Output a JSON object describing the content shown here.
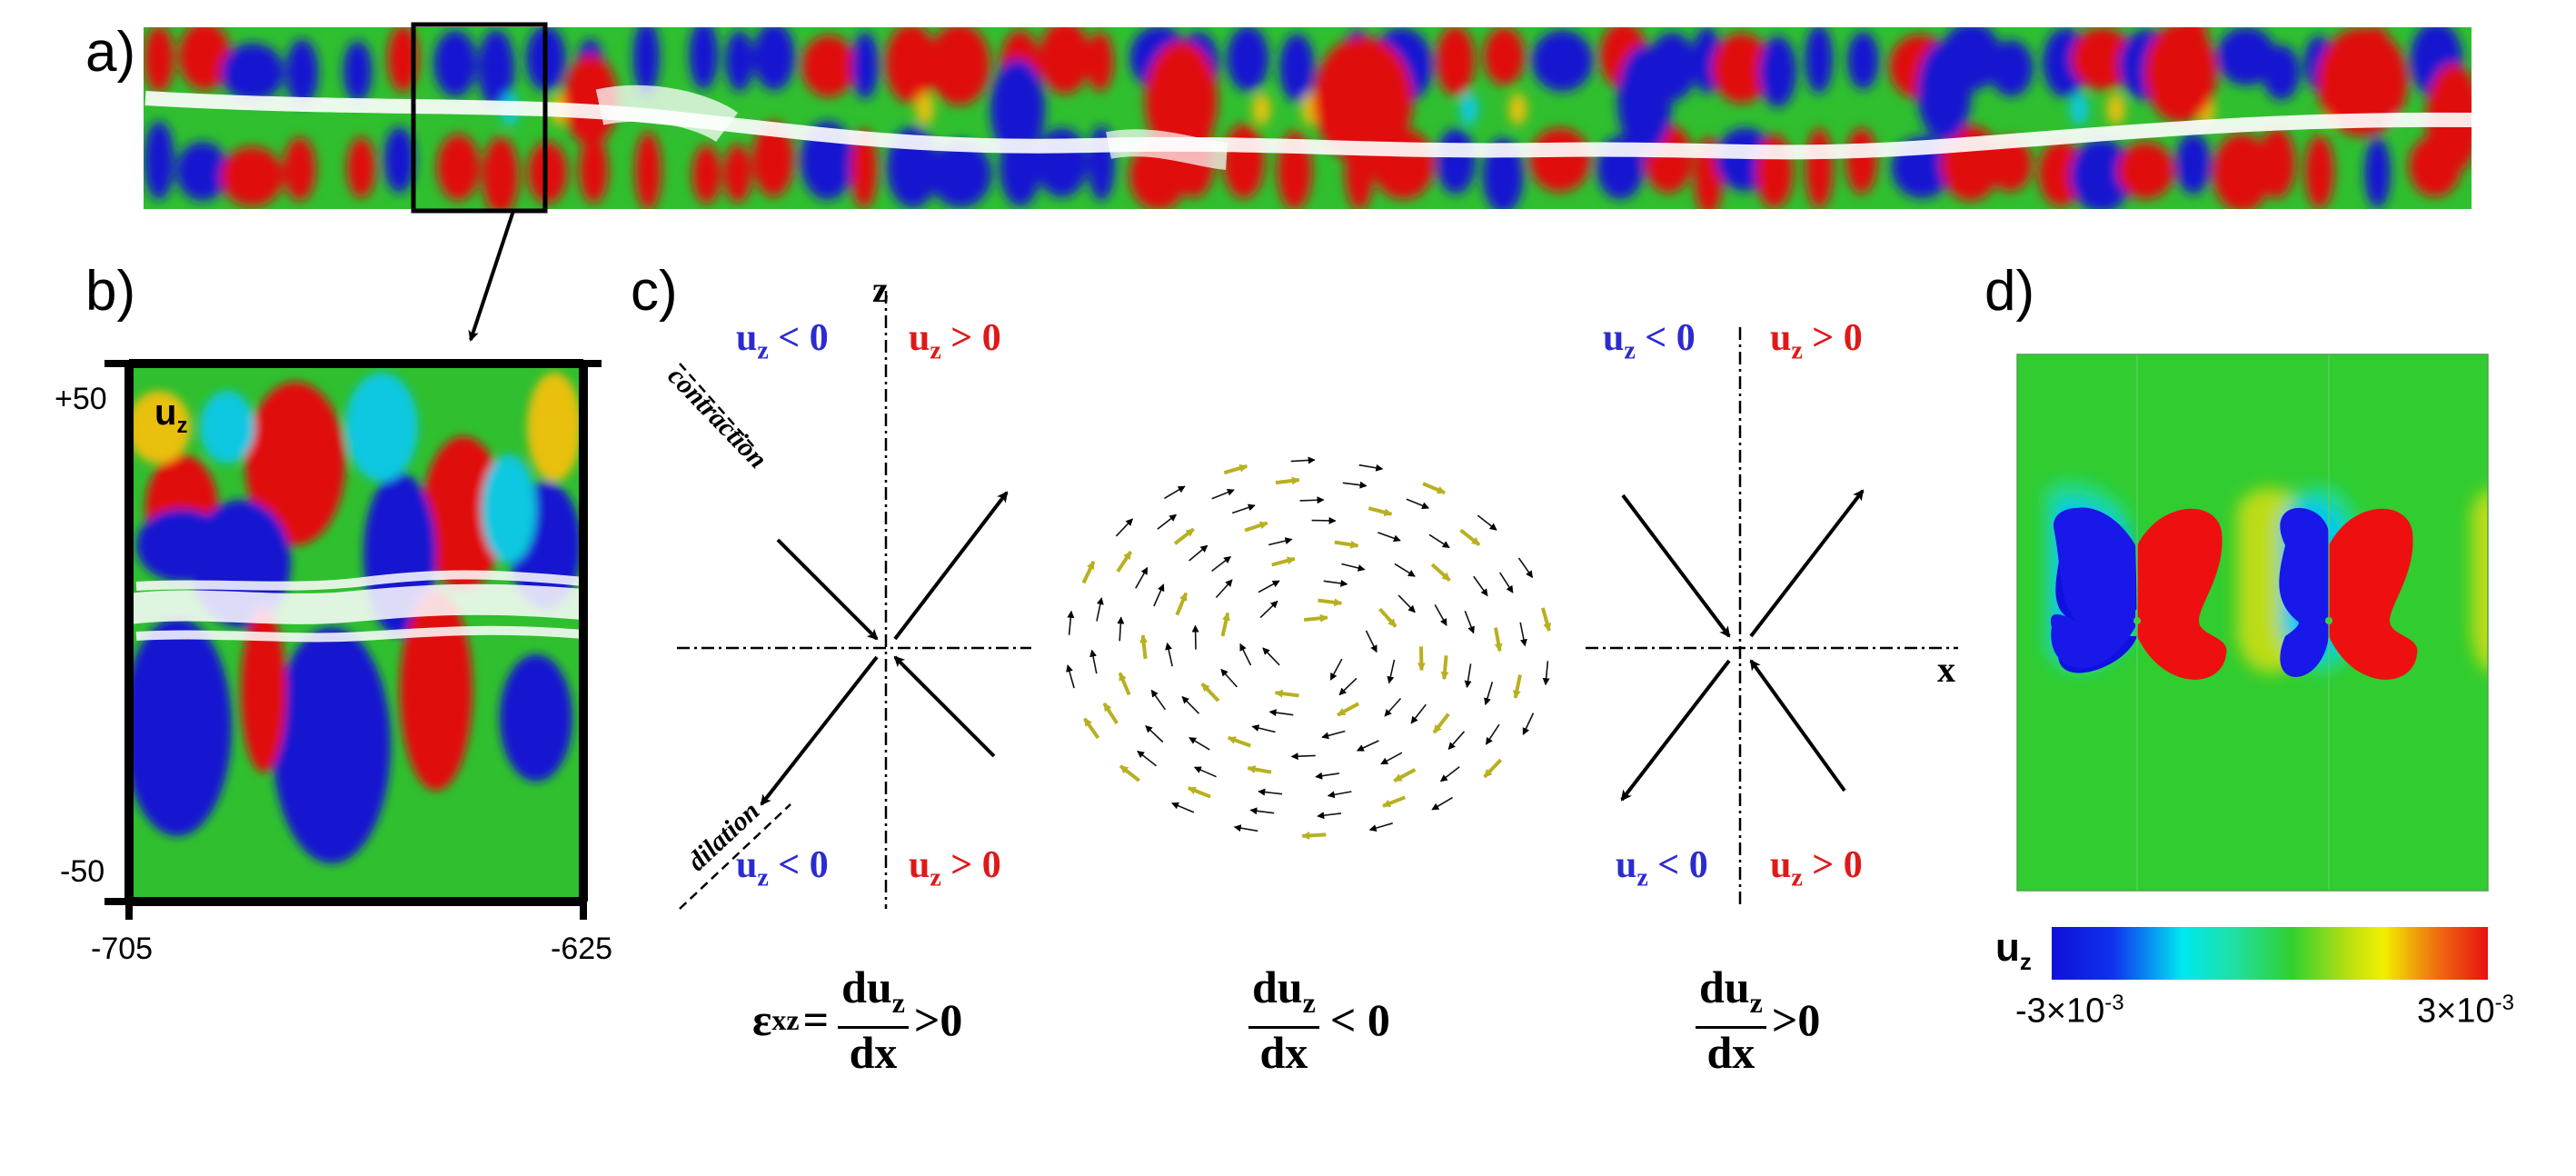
{
  "panel_a": {
    "label": "a)"
  },
  "panel_b": {
    "label": "b)",
    "field_label": "u",
    "field_sub": "z",
    "y_top": "+50",
    "y_bottom": "-50",
    "x_left": "-705",
    "x_right": "-625"
  },
  "panel_c": {
    "label": "c)",
    "z_axis": "z",
    "x_axis": "x",
    "contraction": "contraction",
    "dilation": "dilation",
    "uz_neg": "< 0",
    "uz_pos": "> 0",
    "uz_letter": "u",
    "uz_sub": "z",
    "eq_left_eps": "ε",
    "eq_left_eps_sub": "xz",
    "eq_eq": "=",
    "frac_num": "du",
    "frac_num_sub": "z",
    "frac_den": "dx",
    "rel_pos": ">0",
    "rel_neg": "< 0",
    "colors": {
      "negative": "#2b2bd0",
      "positive": "#e01818",
      "arrow_yellow": "#c8c020"
    }
  },
  "panel_d": {
    "label": "d)",
    "colorbar_label": "u",
    "colorbar_sub": "z",
    "cb_min": "-3×10",
    "cb_min_exp": "-3",
    "cb_max": "3×10",
    "cb_max_exp": "-3"
  }
}
